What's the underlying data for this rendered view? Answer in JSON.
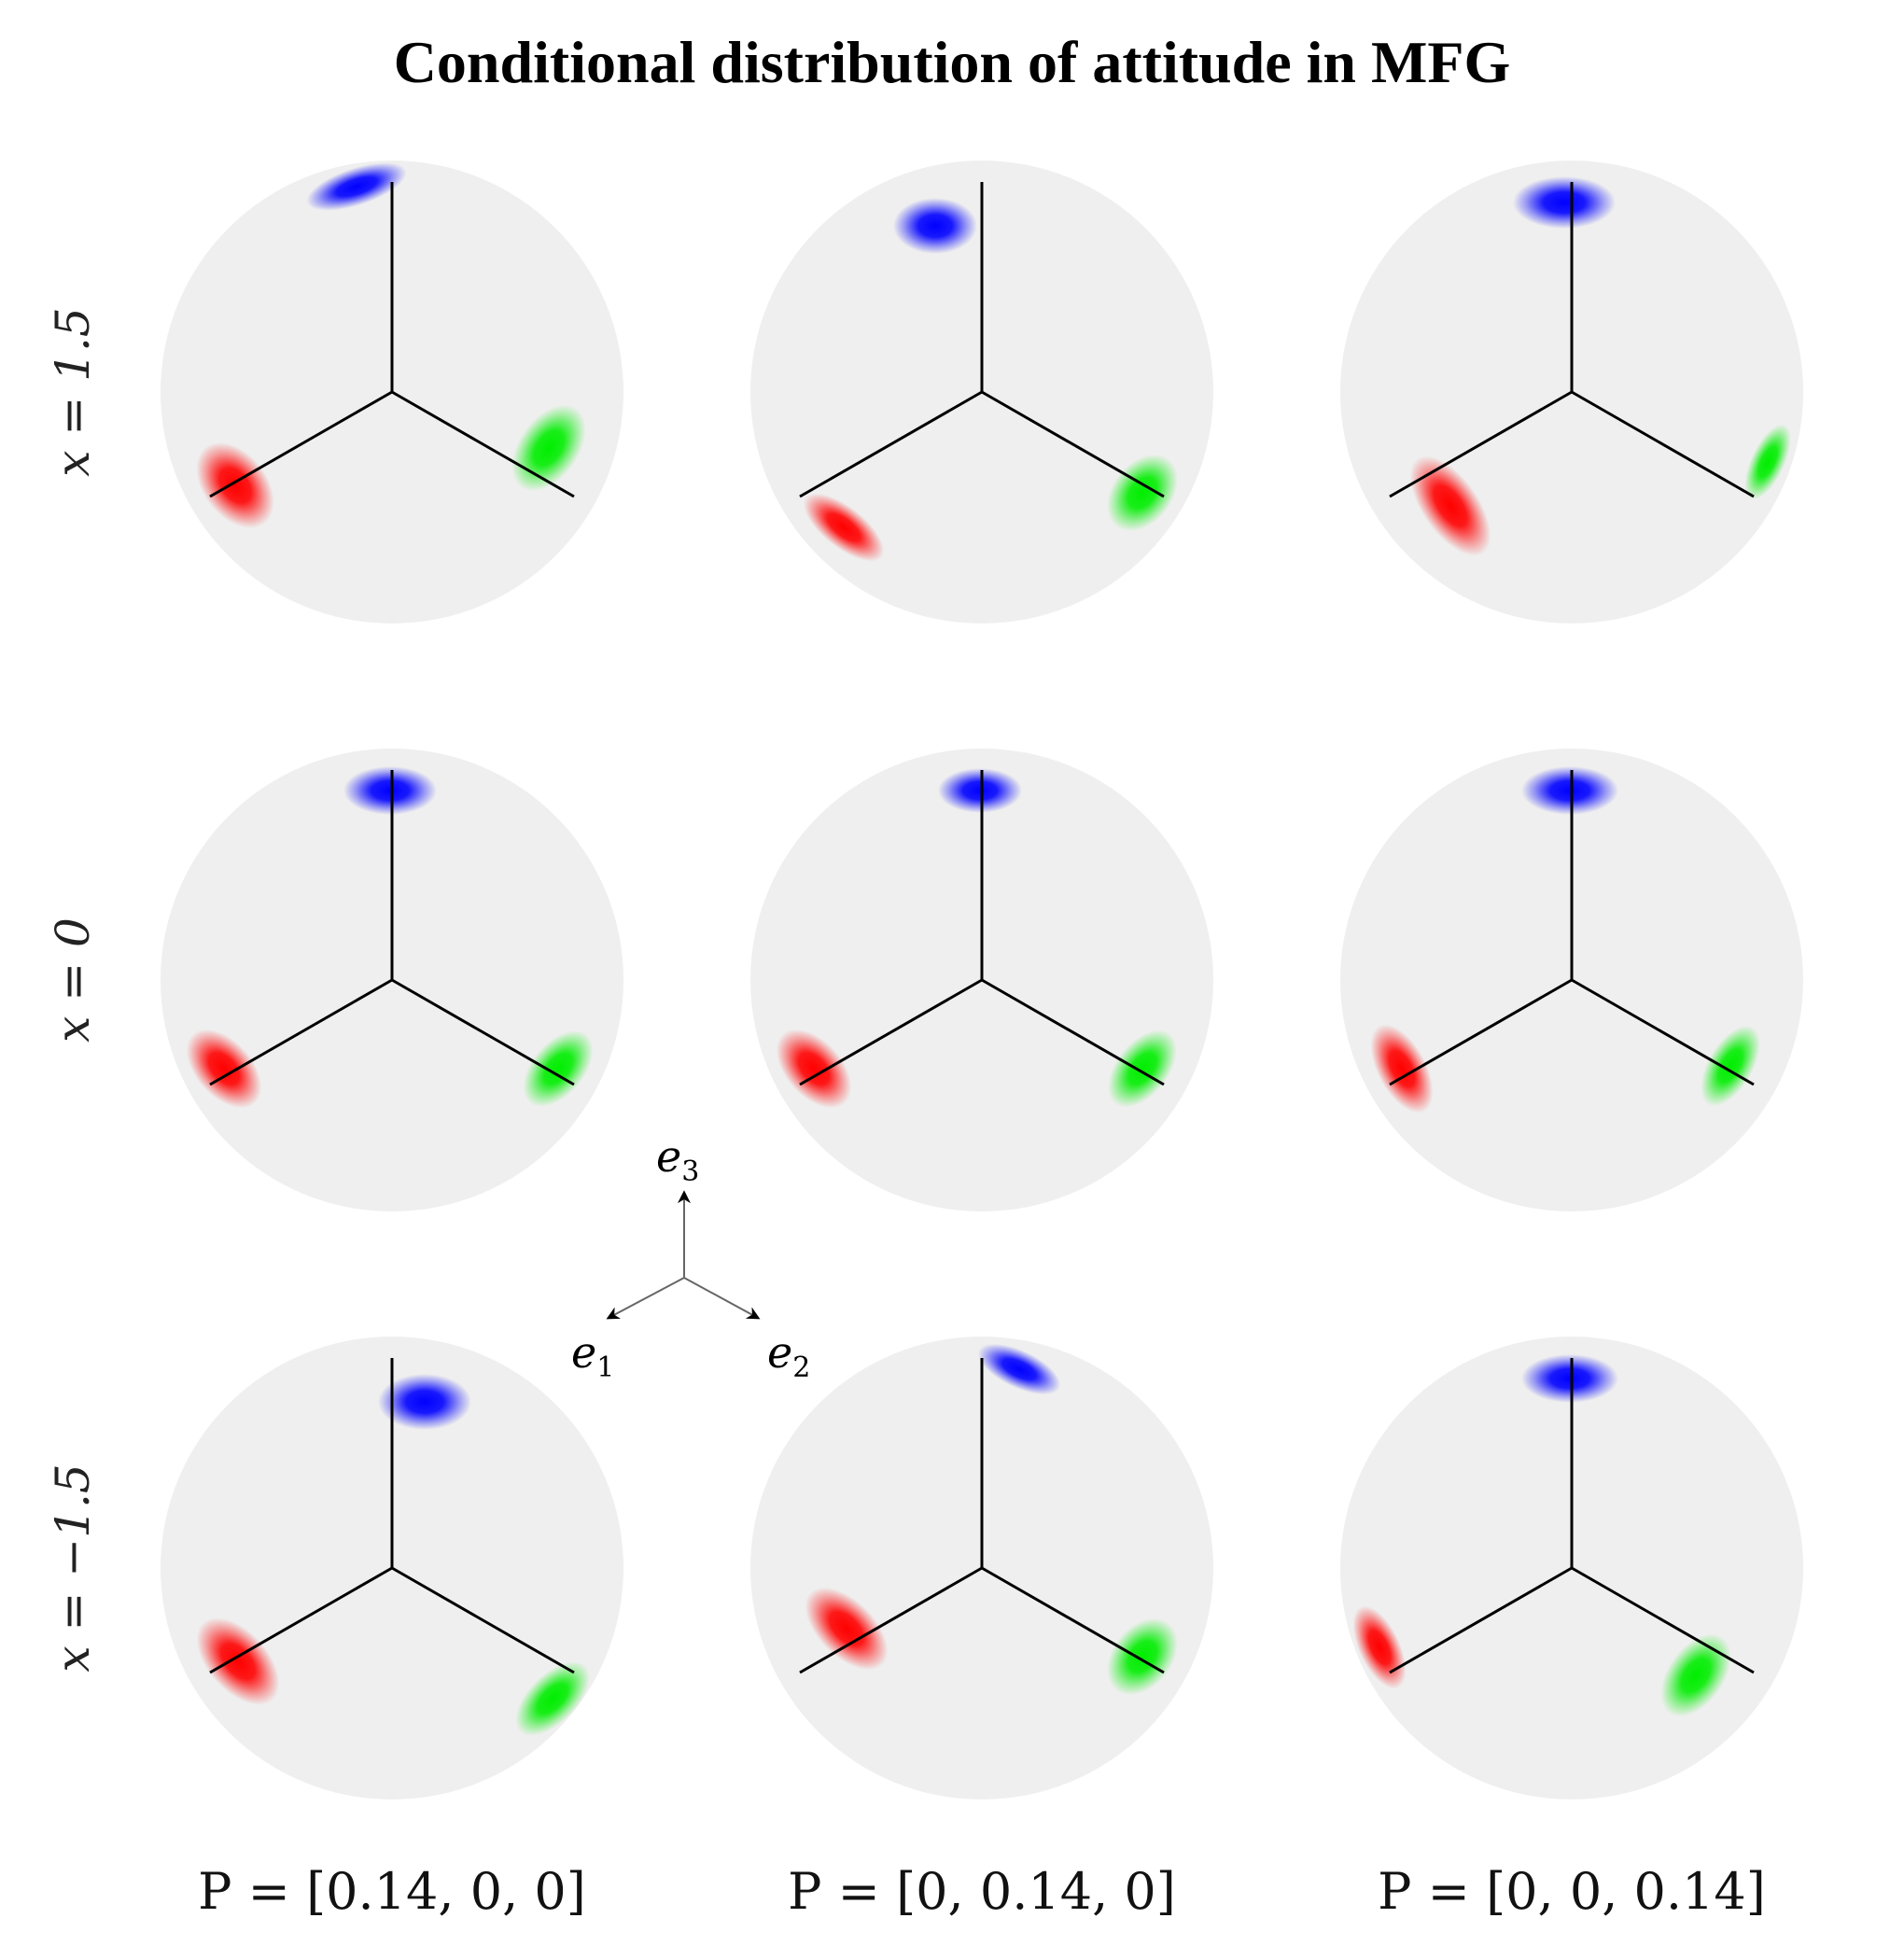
{
  "title": "Conditional distribution of attitude in MFG",
  "row_labels": [
    "x = 1.5",
    "x = 0",
    "x = −1.5"
  ],
  "column_labels": [
    "P = [0.14, 0, 0]",
    "P = [0, 0.14, 0]",
    "P = [0, 0, 0.14]"
  ],
  "legend_axes": {
    "e1": {
      "base": "e",
      "sub": "1"
    },
    "e2": {
      "base": "e",
      "sub": "2"
    },
    "e3": {
      "base": "e",
      "sub": "3"
    }
  },
  "colors": {
    "sphere": "#efefef",
    "axis": "#000000",
    "e1_density": "#ff0000",
    "e2_density": "#00e600",
    "e3_density": "#0000ff"
  },
  "grid": {
    "rows": 3,
    "cols": 3
  }
}
